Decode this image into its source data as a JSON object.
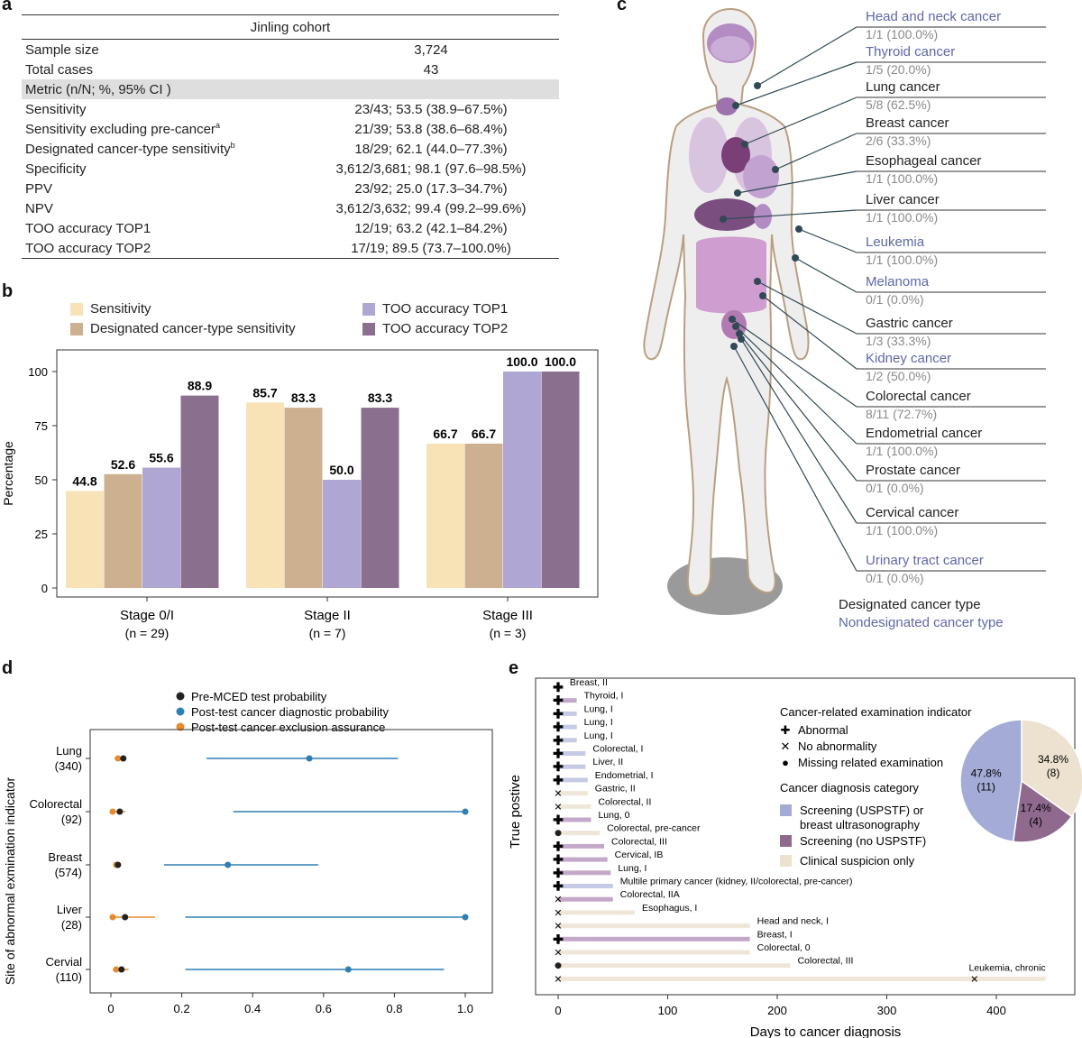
{
  "panels": {
    "a": "a",
    "b": "b",
    "c": "c",
    "d": "d",
    "e": "e"
  },
  "table": {
    "cohort": "Jinling cohort",
    "rows": [
      {
        "label": "Sample size",
        "value": "3,724"
      },
      {
        "label": "Total cases",
        "value": "43"
      }
    ],
    "metric_header": "Metric (n/N; %, 95% CI )",
    "metrics": [
      {
        "label": "Sensitivity",
        "sup": "",
        "value": "23/43; 53.5 (38.9–67.5%)"
      },
      {
        "label": "Sensitivity excluding pre-cancer",
        "sup": "a",
        "value": "21/39; 53.8 (38.6–68.4%)"
      },
      {
        "label": "Designated cancer-type sensitivity",
        "sup": "b",
        "value": "18/29; 62.1 (44.0–77.3%)"
      },
      {
        "label": "Specificity",
        "sup": "",
        "value": "3,612/3,681; 98.1 (97.6–98.5%)"
      },
      {
        "label": "PPV",
        "sup": "",
        "value": "23/92; 25.0 (17.3–34.7%)"
      },
      {
        "label": "NPV",
        "sup": "",
        "value": "3,612/3,632; 99.4 (99.2–99.6%)"
      },
      {
        "label": "TOO accuracy TOP1",
        "sup": "",
        "value": "12/19; 63.2 (42.1–84.2%)"
      },
      {
        "label": "TOO accuracy TOP2",
        "sup": "",
        "value": "17/19; 89.5 (73.7–100.0%)"
      }
    ]
  },
  "colors": {
    "sensitivity": "#f8e3b6",
    "designated": "#cdb08f",
    "top1": "#b0a6d4",
    "top2": "#8a6f8e",
    "pre": "#222222",
    "post_diag": "#2f7fb2",
    "post_excl": "#e88a2e",
    "usptf": "#a3abd6",
    "no_usptf": "#8f6a8e",
    "clinical": "#ede1cf",
    "designated_text": "#222222",
    "nondesignated_text": "#5e68a8"
  },
  "chart_data": [
    {
      "type": "bar",
      "panel": "b",
      "ylabel": "Percentage",
      "ylim": [
        0,
        110
      ],
      "yticks": [
        0,
        25,
        50,
        75,
        100
      ],
      "categories": [
        "Stage 0/I",
        "Stage II",
        "Stage III"
      ],
      "category_n": [
        "(n = 29)",
        "(n = 7)",
        "(n = 3)"
      ],
      "series": [
        {
          "name": "Sensitivity",
          "values": [
            44.8,
            85.7,
            66.7
          ]
        },
        {
          "name": "Designated cancer-type sensitivity",
          "values": [
            52.6,
            83.3,
            66.7
          ]
        },
        {
          "name": "TOO accuracy TOP1",
          "values": [
            55.6,
            50.0,
            100.0
          ]
        },
        {
          "name": "TOO accuracy TOP2",
          "values": [
            88.9,
            83.3,
            100.0
          ]
        }
      ],
      "labels": [
        [
          "44.8",
          "85.7",
          "66.7"
        ],
        [
          "52.6",
          "83.3",
          "66.7"
        ],
        [
          "55.6",
          "50.0",
          "100.0"
        ],
        [
          "88.9",
          "83.3",
          "100.0"
        ]
      ]
    },
    {
      "type": "scatter",
      "panel": "d",
      "ylabel": "Site of abnormal exmination indicator",
      "xlim": [
        0,
        1.0
      ],
      "xticks": [
        "0",
        "0.2",
        "0.4",
        "0.6",
        "0.8",
        "1.0"
      ],
      "legend": [
        "Pre-MCED test probability",
        "Post-test cancer diagnostic probability",
        "Post-test cancer exclusion assurance"
      ],
      "sites": [
        {
          "name": "Lung",
          "n": "(340)",
          "pre": 0.035,
          "diag": 0.56,
          "diag_lo": 0.27,
          "diag_hi": 0.81,
          "excl": 0.02,
          "excl_lo": 0.01,
          "excl_hi": 0.03
        },
        {
          "name": "Colorectal",
          "n": "(92)",
          "pre": 0.025,
          "diag": 1.0,
          "diag_lo": 0.345,
          "diag_hi": 1.0,
          "excl": 0.005,
          "excl_lo": 0.0,
          "excl_hi": 0.04
        },
        {
          "name": "Breast",
          "n": "(574)",
          "pre": 0.02,
          "diag": 0.33,
          "diag_lo": 0.15,
          "diag_hi": 0.585,
          "excl": 0.015,
          "excl_lo": 0.01,
          "excl_hi": 0.025
        },
        {
          "name": "Liver",
          "n": "(28)",
          "pre": 0.04,
          "diag": 1.0,
          "diag_lo": 0.21,
          "diag_hi": 1.0,
          "excl": 0.005,
          "excl_lo": 0.0,
          "excl_hi": 0.125
        },
        {
          "name": "Cervial",
          "n": "(110)",
          "pre": 0.03,
          "diag": 0.67,
          "diag_lo": 0.21,
          "diag_hi": 0.94,
          "excl": 0.015,
          "excl_lo": 0.005,
          "excl_hi": 0.05
        }
      ]
    },
    {
      "type": "bar",
      "panel": "e",
      "xlabel": "Days to cancer diagnosis",
      "ylabel": "True postive",
      "xlim": [
        0,
        450
      ],
      "xticks": [
        0,
        100,
        200,
        300,
        400
      ],
      "legend_title": "Cancer-related examination indicator",
      "indicators": [
        "Abnormal",
        "No abnormality",
        "Missing related examination"
      ],
      "category_title": "Cancer diagnosis category",
      "categories": [
        "Screening (USPSTF) or breast ultrasonography",
        "Screening (no USPSTF)",
        "Clinical suspicion only"
      ],
      "cases": [
        {
          "label": "Breast, II",
          "days": 4,
          "ind": "abnormal",
          "cat": "usptf"
        },
        {
          "label": "Thyroid, I",
          "days": 17,
          "ind": "abnormal",
          "cat": "no_usptf"
        },
        {
          "label": "Lung, I",
          "days": 17,
          "ind": "abnormal",
          "cat": "usptf"
        },
        {
          "label": "Lung, I",
          "days": 17,
          "ind": "abnormal",
          "cat": "usptf"
        },
        {
          "label": "Lung, I",
          "days": 17,
          "ind": "abnormal",
          "cat": "usptf"
        },
        {
          "label": "Colorectal, I",
          "days": 25,
          "ind": "abnormal",
          "cat": "usptf"
        },
        {
          "label": "Liver, II",
          "days": 25,
          "ind": "abnormal",
          "cat": "usptf"
        },
        {
          "label": "Endometrial, I",
          "days": 27,
          "ind": "abnormal",
          "cat": "usptf"
        },
        {
          "label": "Gastric, II",
          "days": 27,
          "ind": "none",
          "cat": "clinical"
        },
        {
          "label": "Colorectal, II",
          "days": 30,
          "ind": "none",
          "cat": "clinical"
        },
        {
          "label": "Lung, 0",
          "days": 30,
          "ind": "abnormal",
          "cat": "no_usptf"
        },
        {
          "label": "Colorectal, pre-cancer",
          "days": 38,
          "ind": "missing",
          "cat": "clinical"
        },
        {
          "label": "Colorectal, III",
          "days": 42,
          "ind": "abnormal",
          "cat": "no_usptf"
        },
        {
          "label": "Cervical, IB",
          "days": 45,
          "ind": "abnormal",
          "cat": "no_usptf"
        },
        {
          "label": "Lung, I",
          "days": 48,
          "ind": "abnormal",
          "cat": "no_usptf"
        },
        {
          "label": "Multile primary cancer (kidney, II/colorectal, pre-cancer)",
          "days": 50,
          "ind": "abnormal",
          "cat": "usptf"
        },
        {
          "label": "Colorectal, IIA",
          "days": 50,
          "ind": "none",
          "cat": "no_usptf"
        },
        {
          "label": "Esophagus, I",
          "days": 70,
          "ind": "none",
          "cat": "clinical"
        },
        {
          "label": "Head and neck, I",
          "days": 175,
          "ind": "none",
          "cat": "clinical"
        },
        {
          "label": "Breast, I",
          "days": 175,
          "ind": "abnormal",
          "cat": "no_usptf"
        },
        {
          "label": "Colorectal, 0",
          "days": 175,
          "ind": "none",
          "cat": "clinical"
        },
        {
          "label": "Colorectal, III",
          "days": 212,
          "ind": "missing",
          "cat": "clinical"
        },
        {
          "label": "Leukemia, chronic",
          "days": 445,
          "ind": "none",
          "cat": "clinical",
          "marker_days": 380
        }
      ]
    },
    {
      "type": "pie",
      "panel": "e",
      "slices": [
        {
          "name": "Screening (USPSTF) or breast ultrasonography",
          "value": 47.8,
          "label": "47.8%",
          "count": "(11)"
        },
        {
          "name": "Screening (no USPSTF)",
          "value": 17.4,
          "label": "17.4%",
          "count": "(4)"
        },
        {
          "name": "Clinical suspicion only",
          "value": 34.8,
          "label": "34.8%",
          "count": "(8)"
        }
      ]
    }
  ],
  "body_map": {
    "legend_designated": "Designated cancer type",
    "legend_nondesignated": "Nondesignated cancer type",
    "cancers": [
      {
        "name": "Head and neck cancer",
        "value": "1/1 (100.0%)",
        "designated": false
      },
      {
        "name": "Thyroid cancer",
        "value": "1/5 (20.0%)",
        "designated": false
      },
      {
        "name": "Lung cancer",
        "value": "5/8 (62.5%)",
        "designated": true
      },
      {
        "name": "Breast cancer",
        "value": " 2/6 (33.3%)",
        "designated": true
      },
      {
        "name": "Esophageal cancer",
        "value": "1/1 (100.0%)",
        "designated": true
      },
      {
        "name": "Liver cancer",
        "value": "1/1 (100.0%)",
        "designated": true
      },
      {
        "name": "Leukemia",
        "value": "1/1 (100.0%)",
        "designated": false
      },
      {
        "name": "Melanoma",
        "value": "0/1 (0.0%)",
        "designated": false
      },
      {
        "name": "Gastric cancer",
        "value": "1/3 (33.3%)",
        "designated": true
      },
      {
        "name": "Kidney cancer",
        "value": "1/2 (50.0%)",
        "designated": false
      },
      {
        "name": "Colorectal cancer",
        "value": "8/11 (72.7%)",
        "designated": true
      },
      {
        "name": "Endometrial cancer",
        "value": "1/1 (100.0%)",
        "designated": true
      },
      {
        "name": "Prostate cancer",
        "value": "0/1 (0.0%)",
        "designated": true
      },
      {
        "name": "Cervical cancer",
        "value": "1/1 (100.0%)",
        "designated": true
      },
      {
        "name": "Urinary tract cancer",
        "value": "0/1 (0.0%)",
        "designated": false
      }
    ]
  }
}
